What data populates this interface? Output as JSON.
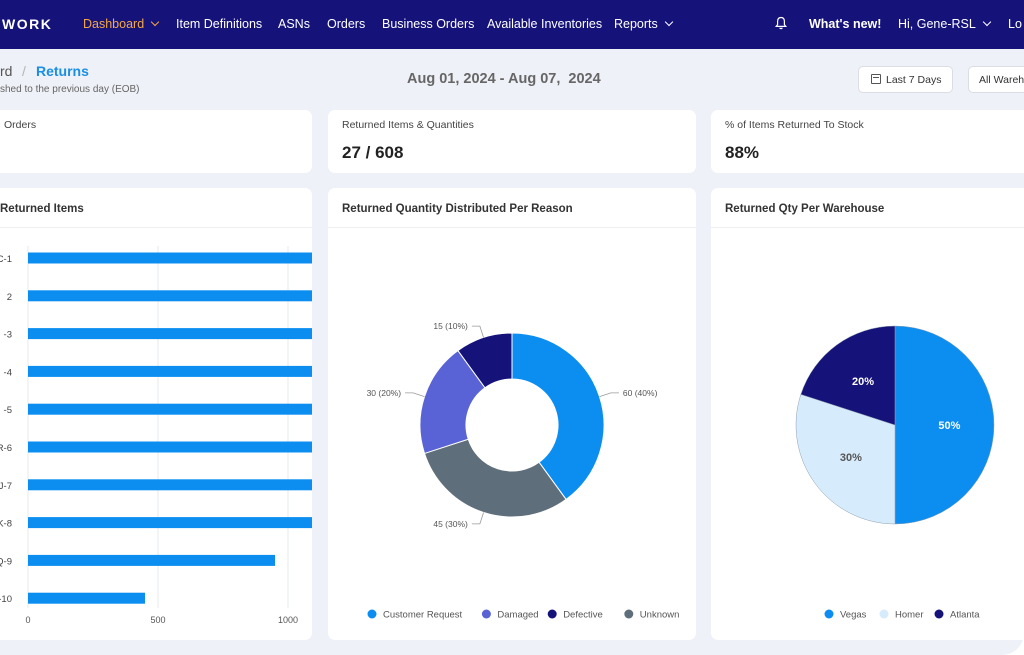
{
  "nav": {
    "brand": "WORK",
    "items": [
      {
        "label": "Dashboard",
        "active": true,
        "dropdown": true
      },
      {
        "label": "Item Definitions"
      },
      {
        "label": "ASNs"
      },
      {
        "label": "Orders"
      },
      {
        "label": "Business Orders"
      },
      {
        "label": "Available Inventories"
      },
      {
        "label": "Reports",
        "dropdown": true
      }
    ],
    "whats_new": "What's new!",
    "greeting": "Hi, Gene-RSL",
    "logout": "Lo"
  },
  "header": {
    "breadcrumb_prev": "rd",
    "breadcrumb_sep": "/",
    "breadcrumb_current": "Returns",
    "subtitle": "shed to the previous day (EOB)",
    "date_range": "Aug 01, 2024 - Aug 07,  2024",
    "filter_last": "Last 7  Days",
    "filter_warehouse": "All Wareh"
  },
  "kpis": [
    {
      "label": "Orders",
      "value": ""
    },
    {
      "label": "Returned Items & Quantities",
      "value": "27 / 608"
    },
    {
      "label": "% of Items Returned To Stock",
      "value": "88%"
    }
  ],
  "colors": {
    "nav_bg": "#15127a",
    "active": "#f5a742",
    "bar": "#0c8ef0",
    "customer_request": "#0c8ef0",
    "damaged": "#5a63d6",
    "defective": "#15127a",
    "unknown": "#5f6e7b",
    "vegas": "#0c8ef0",
    "homer": "#d6ebfb",
    "atlanta": "#15127a"
  },
  "chart_data": [
    {
      "type": "bar",
      "orientation": "horizontal",
      "title": "Returned Items",
      "categories": [
        "C-1",
        "2",
        "-3",
        "-4",
        "-5",
        "R-6",
        "J-7",
        "K-8",
        "Q-9",
        "-10"
      ],
      "values": [
        2050,
        1950,
        1900,
        1880,
        1700,
        1550,
        1300,
        1120,
        950,
        450
      ],
      "xticks": [
        "0",
        "500",
        "1000",
        "1500",
        "2000"
      ],
      "xlim": [
        0,
        2100
      ],
      "grid": true
    },
    {
      "type": "pie",
      "donut": true,
      "title": "Returned Quantity Distributed Per Reason",
      "labels": [
        "Customer Request",
        "Unknown",
        "Damaged",
        "Defective"
      ],
      "values": [
        60,
        45,
        30,
        15
      ],
      "data_labels": [
        "60 (40%)",
        "45 (30%)",
        "30 (20%)",
        "15 (10%)"
      ],
      "legend": [
        "Customer Request",
        "Damaged",
        "Defective",
        "Unknown"
      ],
      "legend_position": "bottom"
    },
    {
      "type": "pie",
      "title": "Returned Qty Per Warehouse",
      "labels": [
        "Vegas",
        "Homer",
        "Atlanta"
      ],
      "values": [
        50,
        30,
        20
      ],
      "data_labels": [
        "50%",
        "30%",
        "20%"
      ],
      "legend_position": "bottom"
    }
  ]
}
